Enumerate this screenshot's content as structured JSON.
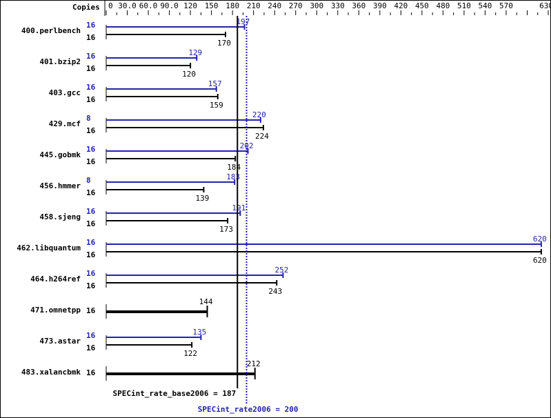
{
  "chart_data": {
    "type": "bar",
    "orientation": "horizontal",
    "axis_label": "Copies",
    "xlim": [
      0,
      630
    ],
    "ticks": [
      "0",
      "30.0",
      "60.0",
      "90.0",
      "120",
      "150",
      "180",
      "210",
      "240",
      "270",
      "300",
      "330",
      "360",
      "390",
      "420",
      "450",
      "480",
      "510",
      "540",
      "570",
      "630"
    ],
    "tick_values": [
      0,
      30,
      60,
      90,
      120,
      150,
      180,
      210,
      240,
      270,
      300,
      330,
      360,
      390,
      420,
      450,
      480,
      510,
      540,
      570,
      630
    ],
    "colors": {
      "base": "#000000",
      "peak": "#2222aa"
    },
    "rows": [
      {
        "name": "400.perlbench",
        "peak_copies": "16",
        "base_copies": "16",
        "peak": 197,
        "base": 170
      },
      {
        "name": "401.bzip2",
        "peak_copies": "16",
        "base_copies": "16",
        "peak": 129,
        "base": 120
      },
      {
        "name": "403.gcc",
        "peak_copies": "16",
        "base_copies": "16",
        "peak": 157,
        "base": 159
      },
      {
        "name": "429.mcf",
        "peak_copies": "8",
        "base_copies": "16",
        "peak": 220,
        "base": 224
      },
      {
        "name": "445.gobmk",
        "peak_copies": "16",
        "base_copies": "16",
        "peak": 202,
        "base": 184
      },
      {
        "name": "456.hmmer",
        "peak_copies": "8",
        "base_copies": "16",
        "peak": 183,
        "base": 139
      },
      {
        "name": "458.sjeng",
        "peak_copies": "16",
        "base_copies": "16",
        "peak": 191,
        "base": 173
      },
      {
        "name": "462.libquantum",
        "peak_copies": "16",
        "base_copies": "16",
        "peak": 620,
        "base": 620
      },
      {
        "name": "464.h264ref",
        "peak_copies": "16",
        "base_copies": "16",
        "peak": 252,
        "base": 243
      },
      {
        "name": "471.omnetpp",
        "peak_copies": null,
        "base_copies": "16",
        "peak": null,
        "base": 144
      },
      {
        "name": "473.astar",
        "peak_copies": "16",
        "base_copies": "16",
        "peak": 135,
        "base": 122
      },
      {
        "name": "483.xalancbmk",
        "peak_copies": null,
        "base_copies": "16",
        "peak": null,
        "base": 212
      }
    ],
    "base_mean": {
      "label": "SPECint_rate_base2006 = 187",
      "value": 187
    },
    "peak_mean": {
      "label": "SPECint_rate2006 = 200",
      "value": 200
    }
  }
}
